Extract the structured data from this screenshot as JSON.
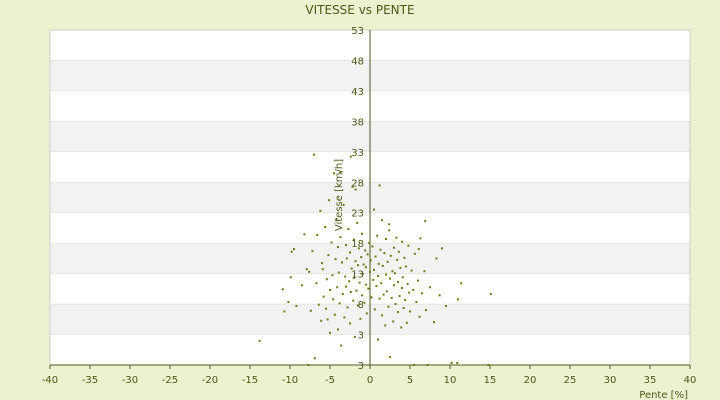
{
  "chart_data": {
    "type": "scatter",
    "title": "VITESSE vs PENTE",
    "xlabel": "Pente [%]",
    "ylabel": "Vitesse [km/h]",
    "xlim": [
      -40,
      40
    ],
    "ylim": [
      3,
      53
    ],
    "x_ticks": [
      "-40",
      "-35",
      "-30",
      "-25",
      "-20",
      "-15",
      "-10",
      "-5",
      "0",
      "5",
      "10",
      "15",
      "20",
      "25",
      "30",
      "35",
      "40"
    ],
    "y_ticks": [
      "53",
      "48",
      "43",
      "38",
      "33",
      "28",
      "23",
      "18",
      "13",
      "8",
      "3",
      "3"
    ],
    "grid": "horizontal bands",
    "legend": "none",
    "colors": {
      "background": "#ecf2cf",
      "band_light": "#ffffff",
      "band_dark": "#f2f2f2",
      "axis": "#4a5a1a",
      "marker": "#6b7a1a"
    },
    "points": [
      [
        -13.8,
        6.6
      ],
      [
        -10.9,
        14.3
      ],
      [
        -10.7,
        11.0
      ],
      [
        -10.2,
        12.4
      ],
      [
        -9.9,
        16.1
      ],
      [
        -9.8,
        19.9
      ],
      [
        -9.5,
        20.3
      ],
      [
        -9.2,
        11.8
      ],
      [
        -8.5,
        14.9
      ],
      [
        -7.9,
        17.3
      ],
      [
        -7.7,
        3.0
      ],
      [
        -7.4,
        11.1
      ],
      [
        -7.2,
        20.0
      ],
      [
        -7.0,
        34.4
      ],
      [
        -6.9,
        4.0
      ],
      [
        -6.7,
        15.2
      ],
      [
        -6.6,
        22.4
      ],
      [
        -6.4,
        12.0
      ],
      [
        -6.2,
        26.0
      ],
      [
        -6.1,
        9.6
      ],
      [
        -6.0,
        18.2
      ],
      [
        -5.9,
        17.3
      ],
      [
        -5.8,
        13.2
      ],
      [
        -5.6,
        23.6
      ],
      [
        -5.5,
        11.4
      ],
      [
        -5.4,
        15.8
      ],
      [
        -5.3,
        9.8
      ],
      [
        -5.2,
        19.4
      ],
      [
        -5.1,
        27.6
      ],
      [
        -5.0,
        14.2
      ],
      [
        -5.0,
        7.8
      ],
      [
        -4.8,
        21.3
      ],
      [
        -4.7,
        16.4
      ],
      [
        -4.6,
        12.8
      ],
      [
        -4.5,
        31.6
      ],
      [
        -4.4,
        10.5
      ],
      [
        -4.3,
        18.8
      ],
      [
        -4.2,
        24.8
      ],
      [
        -4.1,
        14.6
      ],
      [
        -4.0,
        8.3
      ],
      [
        -4.0,
        20.6
      ],
      [
        -3.9,
        16.8
      ],
      [
        -3.8,
        12.2
      ],
      [
        -3.7,
        22.1
      ],
      [
        -3.6,
        5.9
      ],
      [
        -3.5,
        18.3
      ],
      [
        -3.4,
        13.6
      ],
      [
        -3.3,
        26.9
      ],
      [
        -3.2,
        10.1
      ],
      [
        -3.1,
        16.2
      ],
      [
        -3.0,
        20.9
      ],
      [
        -3.0,
        14.7
      ],
      [
        -2.9,
        18.9
      ],
      [
        -2.8,
        11.6
      ],
      [
        -2.7,
        23.3
      ],
      [
        -2.6,
        15.5
      ],
      [
        -2.5,
        9.2
      ],
      [
        -2.5,
        19.8
      ],
      [
        -2.4,
        13.9
      ],
      [
        -2.3,
        17.4
      ],
      [
        -2.2,
        29.6
      ],
      [
        -2.1,
        12.6
      ],
      [
        -2.0,
        21.7
      ],
      [
        -2.0,
        16.0
      ],
      [
        -1.9,
        7.2
      ],
      [
        -1.8,
        18.5
      ],
      [
        -1.7,
        14.1
      ],
      [
        -1.6,
        24.2
      ],
      [
        -1.5,
        11.9
      ],
      [
        -1.5,
        17.9
      ],
      [
        -1.4,
        20.4
      ],
      [
        -1.3,
        15.3
      ],
      [
        -1.2,
        9.9
      ],
      [
        -1.1,
        19.1
      ],
      [
        -1.0,
        13.4
      ],
      [
        -1.0,
        22.6
      ],
      [
        -0.9,
        16.6
      ],
      [
        -0.8,
        18.0
      ],
      [
        -0.7,
        12.3
      ],
      [
        -0.6,
        20.1
      ],
      [
        -0.5,
        15.0
      ],
      [
        -0.5,
        17.6
      ],
      [
        -0.4,
        10.7
      ],
      [
        -0.3,
        19.5
      ],
      [
        -0.2,
        14.4
      ],
      [
        -0.1,
        21.2
      ],
      [
        0.0,
        16.9
      ],
      [
        0.1,
        18.6
      ],
      [
        0.2,
        13.1
      ],
      [
        0.3,
        20.7
      ],
      [
        0.4,
        15.7
      ],
      [
        0.5,
        17.2
      ],
      [
        0.5,
        26.2
      ],
      [
        0.6,
        11.3
      ],
      [
        0.7,
        19.2
      ],
      [
        0.8,
        14.8
      ],
      [
        0.9,
        22.3
      ],
      [
        1.0,
        16.3
      ],
      [
        1.0,
        6.8
      ],
      [
        1.1,
        18.1
      ],
      [
        1.2,
        12.9
      ],
      [
        1.3,
        20.2
      ],
      [
        1.4,
        15.2
      ],
      [
        1.5,
        24.6
      ],
      [
        1.5,
        10.4
      ],
      [
        1.6,
        17.8
      ],
      [
        1.7,
        13.5
      ],
      [
        1.8,
        19.7
      ],
      [
        1.9,
        8.9
      ],
      [
        2.0,
        16.5
      ],
      [
        2.0,
        21.8
      ],
      [
        2.1,
        14.0
      ],
      [
        2.2,
        18.4
      ],
      [
        2.3,
        11.7
      ],
      [
        2.4,
        23.1
      ],
      [
        2.5,
        15.9
      ],
      [
        2.5,
        4.2
      ],
      [
        2.6,
        19.3
      ],
      [
        2.7,
        13.0
      ],
      [
        2.8,
        17.0
      ],
      [
        2.9,
        9.5
      ],
      [
        3.0,
        20.5
      ],
      [
        3.0,
        14.9
      ],
      [
        3.1,
        16.7
      ],
      [
        3.2,
        12.1
      ],
      [
        3.3,
        22.0
      ],
      [
        3.4,
        18.7
      ],
      [
        3.5,
        10.9
      ],
      [
        3.5,
        15.4
      ],
      [
        3.6,
        19.9
      ],
      [
        3.7,
        13.3
      ],
      [
        3.8,
        17.5
      ],
      [
        3.9,
        8.6
      ],
      [
        4.0,
        21.4
      ],
      [
        4.0,
        14.5
      ],
      [
        4.1,
        16.1
      ],
      [
        4.2,
        11.5
      ],
      [
        4.3,
        19.0
      ],
      [
        4.4,
        12.7
      ],
      [
        4.5,
        17.7
      ],
      [
        4.6,
        9.3
      ],
      [
        4.7,
        15.1
      ],
      [
        4.8,
        20.8
      ],
      [
        4.9,
        13.8
      ],
      [
        5.0,
        11.0
      ],
      [
        5.2,
        17.1
      ],
      [
        5.4,
        14.2
      ],
      [
        5.5,
        3.0
      ],
      [
        5.6,
        19.6
      ],
      [
        5.8,
        12.4
      ],
      [
        6.0,
        15.6
      ],
      [
        6.2,
        10.2
      ],
      [
        6.3,
        21.9
      ],
      [
        6.5,
        13.7
      ],
      [
        6.8,
        17.0
      ],
      [
        7.0,
        11.2
      ],
      [
        7.2,
        3.0
      ],
      [
        7.5,
        14.6
      ],
      [
        8.0,
        9.4
      ],
      [
        8.3,
        18.9
      ],
      [
        8.7,
        13.4
      ],
      [
        9.0,
        20.4
      ],
      [
        9.5,
        11.8
      ],
      [
        10.2,
        3.3
      ],
      [
        10.9,
        3.3
      ],
      [
        11.0,
        12.8
      ],
      [
        11.4,
        15.2
      ],
      [
        14.8,
        3.0
      ],
      [
        15.1,
        13.6
      ],
      [
        -8.2,
        22.5
      ],
      [
        -7.6,
        16.9
      ],
      [
        -3.7,
        31.8
      ],
      [
        -2.4,
        34.1
      ],
      [
        -1.8,
        29.2
      ],
      [
        1.2,
        29.8
      ],
      [
        2.4,
        24.0
      ],
      [
        6.1,
        20.3
      ],
      [
        6.9,
        24.5
      ]
    ]
  }
}
